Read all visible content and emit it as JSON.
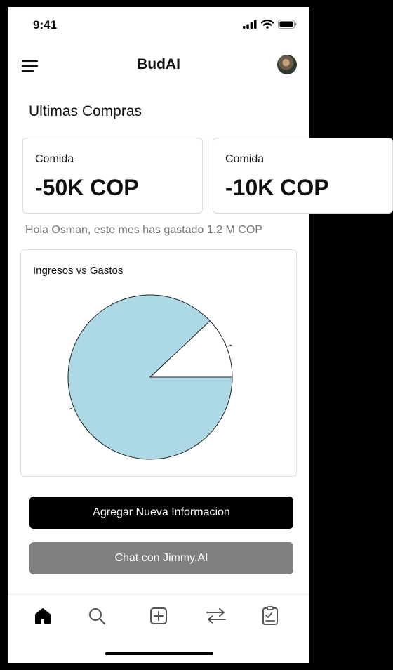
{
  "status_bar": {
    "time": "9:41"
  },
  "header": {
    "title": "BudAI"
  },
  "section_title": "Ultimas Compras",
  "purchases": [
    {
      "category": "Comida",
      "amount": "-50K COP"
    },
    {
      "category": "Comida",
      "amount": "-10K COP"
    }
  ],
  "summary": "Hola Osman, este mes has gastado 1.2 M COP",
  "chart": {
    "title": "Ingresos vs Gastos"
  },
  "chart_data": {
    "type": "pie",
    "title": "Ingresos vs Gastos",
    "slices": [
      {
        "value": 88,
        "color": "#ADD8E6"
      },
      {
        "value": 12,
        "color": "#FFFFFF"
      }
    ]
  },
  "buttons": {
    "add_info": "Agregar Nueva  Informacion",
    "chat": "Chat con Jimmy.AI"
  },
  "nav": [
    "home-icon",
    "search-icon",
    "add-icon",
    "transfer-icon",
    "report-icon"
  ]
}
